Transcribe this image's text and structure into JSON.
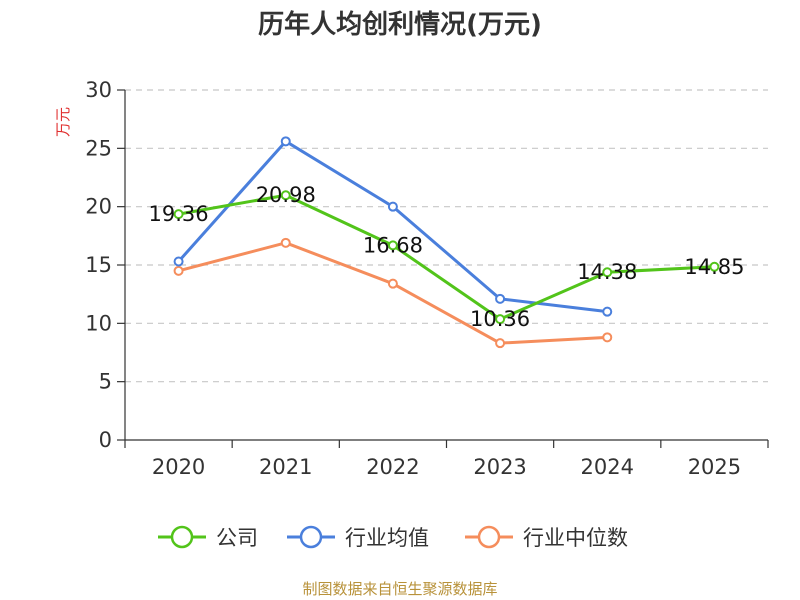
{
  "chart_data": {
    "type": "line",
    "title": "历年人均创利情况(万元)",
    "ylabel": "万元",
    "xlabel": "",
    "categories": [
      "2020",
      "2021",
      "2022",
      "2023",
      "2024",
      "2025"
    ],
    "ylim": [
      0,
      30
    ],
    "yticks": [
      0,
      5,
      10,
      15,
      20,
      25,
      30
    ],
    "grid": true,
    "legend_position": "bottom",
    "series": [
      {
        "name": "公司",
        "color": "#52c41a",
        "values": [
          19.36,
          20.98,
          16.68,
          10.36,
          14.38,
          14.85
        ],
        "labels": [
          "19.36",
          "20.98",
          "16.68",
          "10.36",
          "14.38",
          "14.85"
        ]
      },
      {
        "name": "行业均值",
        "color": "#4a7fdc",
        "values": [
          15.3,
          25.6,
          20.0,
          12.1,
          11.0,
          null
        ]
      },
      {
        "name": "行业中位数",
        "color": "#f58d5c",
        "values": [
          14.5,
          16.9,
          13.4,
          8.3,
          8.8,
          null
        ]
      }
    ],
    "source": "制图数据来自恒生聚源数据库"
  }
}
